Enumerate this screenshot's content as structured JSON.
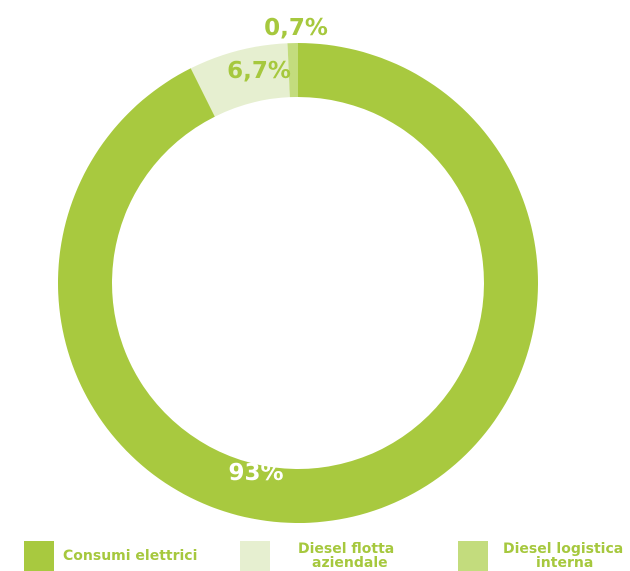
{
  "chart_data": {
    "type": "pie",
    "variant": "donut",
    "categories": [
      "Consumi elettrici",
      "Diesel flotta aziendale",
      "Diesel logistica interna"
    ],
    "values": [
      93,
      6.7,
      0.7
    ],
    "data_labels": [
      "93%",
      "6,7%",
      "0,7%"
    ],
    "colors": [
      "#a8c93f",
      "#e6efd0",
      "#c3dc7d"
    ],
    "label_color_inside": "#ffffff",
    "label_color_outside": "#a6c83e",
    "legend_position": "bottom"
  },
  "legend": {
    "items": [
      {
        "label": "Consumi elettrici",
        "color": "#a8c93f"
      },
      {
        "label_line1": "Diesel flotta",
        "label_line2": "aziendale",
        "color": "#e6efd0"
      },
      {
        "label_line1": "Diesel logistica",
        "label_line2": "interna",
        "color": "#c3dc7d"
      }
    ]
  }
}
